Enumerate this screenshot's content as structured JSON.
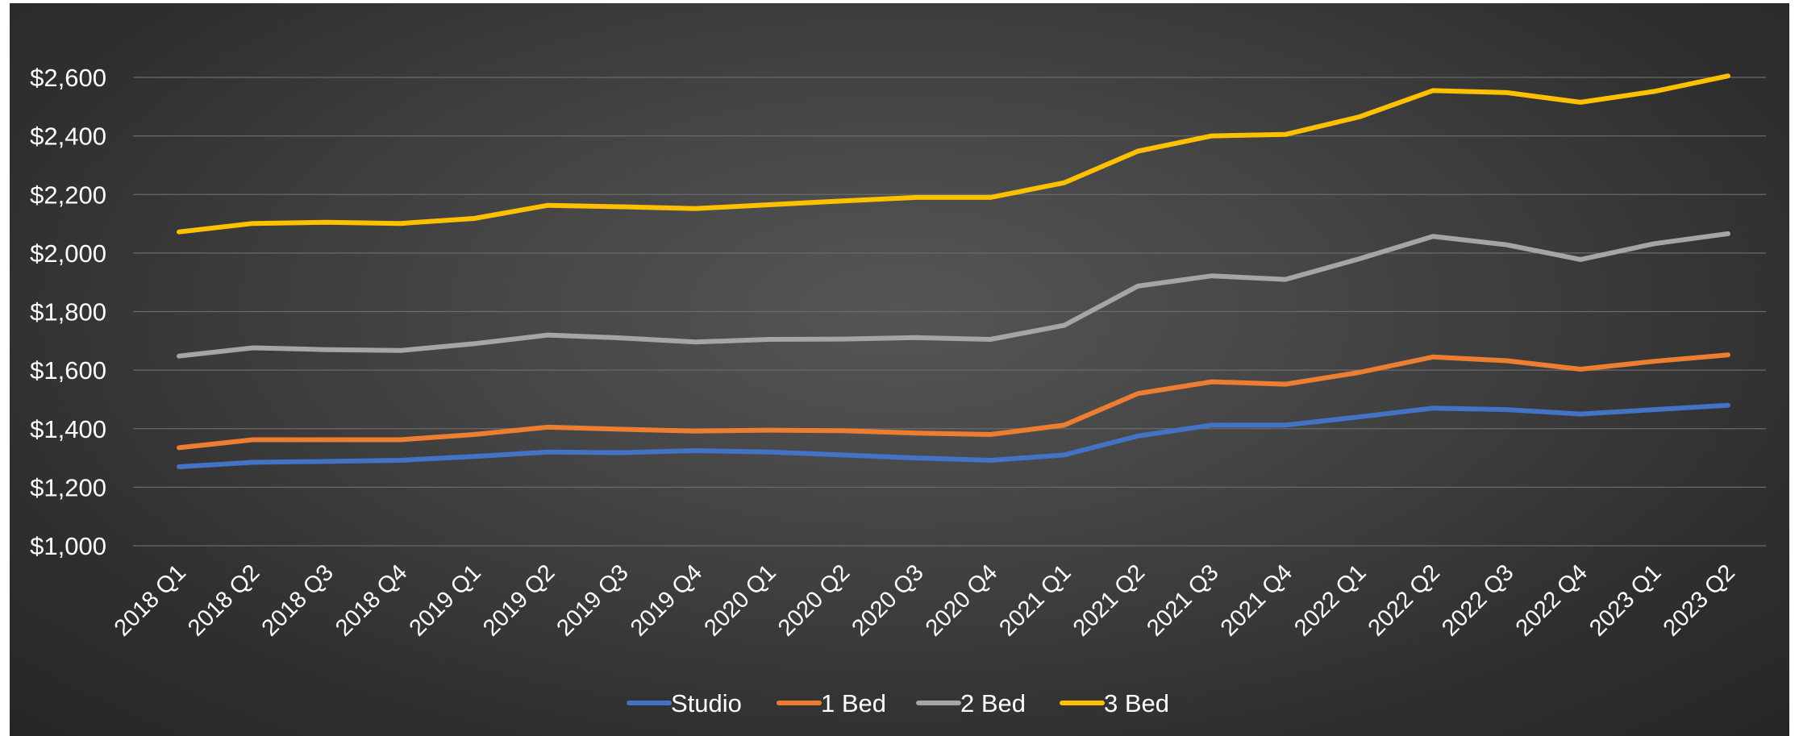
{
  "chart_data": {
    "type": "line",
    "title": "",
    "xlabel": "",
    "ylabel": "",
    "ylim": [
      1000,
      2600
    ],
    "y_tick_values": [
      1000,
      1200,
      1400,
      1600,
      1800,
      2000,
      2200,
      2400,
      2600
    ],
    "y_tick_labels": [
      "$1,000",
      "$1,200",
      "$1,400",
      "$1,600",
      "$1,800",
      "$2,000",
      "$2,200",
      "$2,400",
      "$2,600"
    ],
    "grid": true,
    "legend_position": "bottom",
    "categories": [
      "2018 Q1",
      "2018 Q2",
      "2018 Q3",
      "2018 Q4",
      "2019 Q1",
      "2019 Q2",
      "2019 Q3",
      "2019 Q4",
      "2020 Q1",
      "2020 Q2",
      "2020 Q3",
      "2020 Q4",
      "2021 Q1",
      "2021 Q2",
      "2021 Q3",
      "2021 Q4",
      "2022 Q1",
      "2022 Q2",
      "2022 Q3",
      "2022 Q4",
      "2023 Q1",
      "2023 Q2"
    ],
    "series": [
      {
        "name": "Studio",
        "color": "#4472C4",
        "values": [
          1270,
          1285,
          1288,
          1292,
          1305,
          1320,
          1318,
          1325,
          1320,
          1310,
          1300,
          1292,
          1310,
          1375,
          1412,
          1412,
          1440,
          1470,
          1465,
          1450,
          1465,
          1480
        ]
      },
      {
        "name": "1 Bed",
        "color": "#ED7D31",
        "values": [
          1335,
          1362,
          1362,
          1362,
          1380,
          1405,
          1398,
          1392,
          1395,
          1393,
          1385,
          1380,
          1412,
          1520,
          1560,
          1552,
          1592,
          1645,
          1632,
          1603,
          1630,
          1652
        ]
      },
      {
        "name": "2 Bed",
        "color": "#A5A5A5",
        "values": [
          1648,
          1676,
          1670,
          1667,
          1690,
          1720,
          1710,
          1696,
          1705,
          1706,
          1711,
          1705,
          1753,
          1887,
          1922,
          1910,
          1980,
          2057,
          2028,
          1978,
          2032,
          2066
        ]
      },
      {
        "name": "3 Bed",
        "color": "#FFC000",
        "values": [
          2072,
          2101,
          2105,
          2101,
          2118,
          2163,
          2158,
          2152,
          2165,
          2178,
          2190,
          2190,
          2240,
          2348,
          2400,
          2405,
          2465,
          2555,
          2548,
          2515,
          2552,
          2605
        ]
      }
    ]
  }
}
